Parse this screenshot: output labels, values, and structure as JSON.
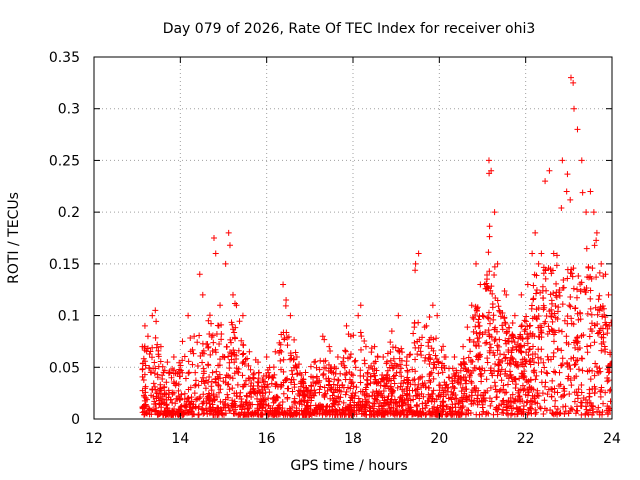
{
  "chart_data": {
    "type": "scatter",
    "title": "Day 079 of 2026, Rate Of TEC Index for receiver ohi3",
    "xlabel": "GPS time / hours",
    "ylabel": "ROTI / TECUs",
    "xlim": [
      12,
      24
    ],
    "ylim": [
      0,
      0.35
    ],
    "x_ticks": [
      "12",
      "14",
      "16",
      "18",
      "20",
      "22",
      "24"
    ],
    "y_ticks": [
      "0",
      "0.05",
      "0.1",
      "0.15",
      "0.2",
      "0.25",
      "0.3",
      "0.35"
    ],
    "grid": true,
    "marker": "plus",
    "color": "#ff0000",
    "series": [
      {
        "name": "ROTI",
        "points": [
          [
            13.12,
            0.07
          ],
          [
            13.18,
            0.09
          ],
          [
            13.25,
            0.08
          ],
          [
            13.35,
            0.1
          ],
          [
            13.42,
            0.105
          ],
          [
            13.55,
            0.07
          ],
          [
            13.7,
            0.055
          ],
          [
            13.85,
            0.06
          ],
          [
            14.05,
            0.075
          ],
          [
            14.18,
            0.1
          ],
          [
            14.32,
            0.08
          ],
          [
            14.45,
            0.14
          ],
          [
            14.52,
            0.12
          ],
          [
            14.65,
            0.095
          ],
          [
            14.78,
            0.175
          ],
          [
            14.82,
            0.16
          ],
          [
            14.92,
            0.11
          ],
          [
            15.05,
            0.15
          ],
          [
            15.12,
            0.18
          ],
          [
            15.15,
            0.168
          ],
          [
            15.22,
            0.12
          ],
          [
            15.3,
            0.11
          ],
          [
            15.45,
            0.1
          ],
          [
            15.6,
            0.065
          ],
          [
            15.8,
            0.055
          ],
          [
            16.0,
            0.06
          ],
          [
            16.2,
            0.065
          ],
          [
            16.38,
            0.13
          ],
          [
            16.45,
            0.115
          ],
          [
            16.55,
            0.1
          ],
          [
            16.7,
            0.06
          ],
          [
            16.9,
            0.045
          ],
          [
            17.1,
            0.055
          ],
          [
            17.3,
            0.08
          ],
          [
            17.45,
            0.07
          ],
          [
            17.65,
            0.06
          ],
          [
            17.85,
            0.09
          ],
          [
            17.95,
            0.08
          ],
          [
            18.12,
            0.1
          ],
          [
            18.18,
            0.11
          ],
          [
            18.3,
            0.07
          ],
          [
            18.5,
            0.07
          ],
          [
            18.7,
            0.06
          ],
          [
            18.9,
            0.085
          ],
          [
            19.05,
            0.1
          ],
          [
            19.25,
            0.06
          ],
          [
            19.45,
            0.15
          ],
          [
            19.52,
            0.16
          ],
          [
            19.7,
            0.09
          ],
          [
            19.85,
            0.11
          ],
          [
            19.95,
            0.1
          ],
          [
            20.15,
            0.06
          ],
          [
            20.35,
            0.06
          ],
          [
            20.55,
            0.07
          ],
          [
            20.75,
            0.11
          ],
          [
            20.85,
            0.15
          ],
          [
            20.95,
            0.13
          ],
          [
            21.05,
            0.13
          ],
          [
            21.15,
            0.25
          ],
          [
            21.2,
            0.24
          ],
          [
            21.28,
            0.2
          ],
          [
            21.35,
            0.15
          ],
          [
            21.55,
            0.12
          ],
          [
            21.75,
            0.1
          ],
          [
            21.9,
            0.12
          ],
          [
            22.05,
            0.13
          ],
          [
            22.15,
            0.16
          ],
          [
            22.22,
            0.18
          ],
          [
            22.3,
            0.15
          ],
          [
            22.45,
            0.23
          ],
          [
            22.55,
            0.24
          ],
          [
            22.65,
            0.16
          ],
          [
            22.85,
            0.25
          ],
          [
            22.95,
            0.22
          ],
          [
            23.05,
            0.33
          ],
          [
            23.1,
            0.325
          ],
          [
            23.12,
            0.3
          ],
          [
            23.2,
            0.28
          ],
          [
            23.3,
            0.25
          ],
          [
            23.4,
            0.2
          ],
          [
            23.5,
            0.22
          ],
          [
            23.58,
            0.2
          ],
          [
            23.65,
            0.18
          ],
          [
            23.75,
            0.15
          ],
          [
            23.85,
            0.14
          ],
          [
            23.92,
            0.12
          ]
        ]
      }
    ]
  }
}
